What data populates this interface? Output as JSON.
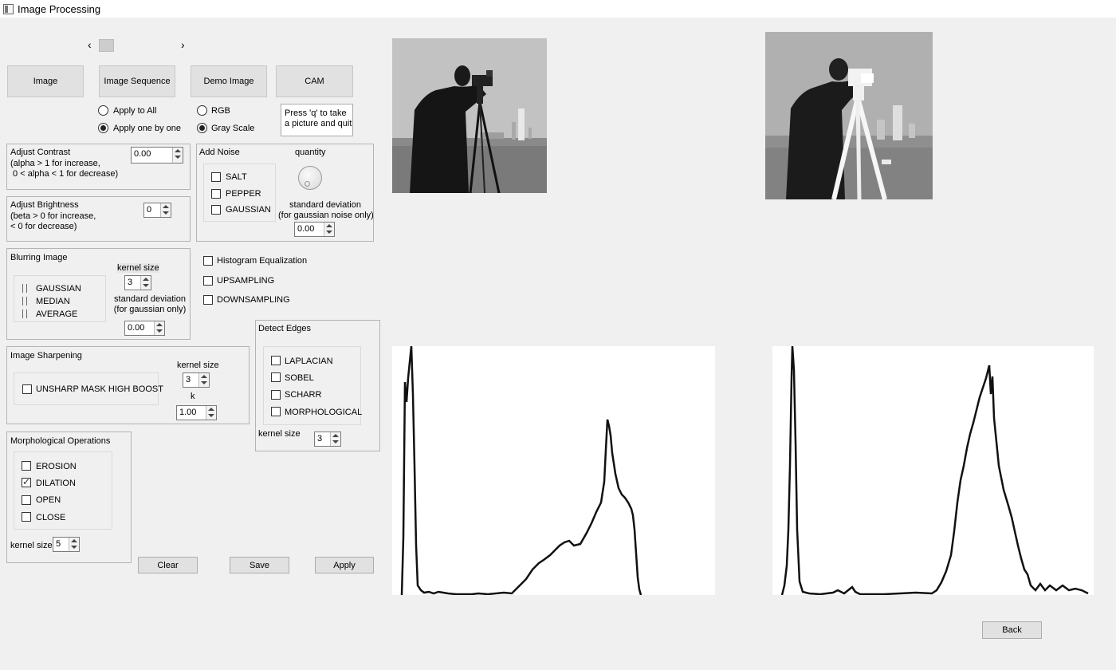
{
  "window": {
    "title": "Image Processing"
  },
  "slider": {
    "left_arrow": "‹",
    "right_arrow": "›"
  },
  "source_buttons": {
    "image": "Image",
    "sequence": "Image Sequence",
    "demo": "Demo Image",
    "cam": "CAM"
  },
  "apply_mode": {
    "all": "Apply to All",
    "one": "Apply one by one",
    "selected": "one"
  },
  "color_mode": {
    "rgb": "RGB",
    "gray": "Gray Scale",
    "selected": "gray"
  },
  "cam_note": "Press 'q' to take\na picture and quit",
  "contrast": {
    "title": "Adjust Contrast",
    "desc": "(alpha > 1 for increase,\n 0 < alpha < 1 for decrease)",
    "value": "0.00"
  },
  "brightness": {
    "title": "Adjust Brightness",
    "desc": "(beta > 0 for increase,\n< 0 for decrease)",
    "value": "0"
  },
  "noise": {
    "title": "Add Noise",
    "options": [
      "SALT",
      "PEPPER",
      "GAUSSIAN"
    ],
    "quantity_label": "quantity",
    "std_label": "standard deviation\n(for gaussian noise only)",
    "std_value": "0.00"
  },
  "blur": {
    "title": "Blurring Image",
    "options": [
      "GAUSSIAN",
      "MEDIAN",
      "AVERAGE"
    ],
    "kernel_label": "kernel size",
    "kernel_value": "3",
    "std_label": "standard deviation\n(for gaussian only)",
    "std_value": "0.00"
  },
  "extras": [
    "Histogram Equalization",
    "UPSAMPLING",
    "DOWNSAMPLING"
  ],
  "sharpen": {
    "title": "Image Sharpening",
    "option": "UNSHARP MASK  HIGH BOOST",
    "kernel_label": "kernel size",
    "kernel_value": "3",
    "k_label": "k",
    "k_value": "1.00"
  },
  "edges": {
    "title": "Detect Edges",
    "options": [
      "LAPLACIAN",
      "SOBEL",
      "SCHARR",
      "MORPHOLOGICAL"
    ],
    "kernel_label": "kernel size",
    "kernel_value": "3"
  },
  "morph": {
    "title": "Morphological Operations",
    "options": [
      "EROSION",
      "DILATION",
      "OPEN",
      "CLOSE"
    ],
    "checked": "DILATION",
    "kernel_label": "kernel size",
    "kernel_value": "5"
  },
  "actions": {
    "clear": "Clear",
    "save": "Save",
    "apply": "Apply",
    "back": "Back"
  }
}
